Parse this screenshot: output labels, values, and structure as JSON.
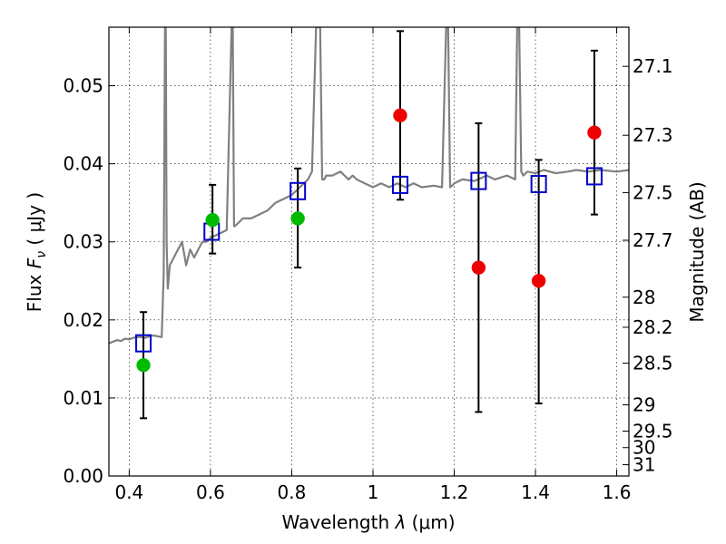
{
  "chart_data": {
    "type": "scatter",
    "xlabel_prefix": "Wavelength  ",
    "xlabel_symbol": "λ",
    "xlabel_unit": " (μm)",
    "ylabel_prefix": "Flux  ",
    "ylabel_symbol": "F",
    "ylabel_sub": "ν",
    "ylabel_unit": "  ( μJy )",
    "y2label": "Magnitude (AB)",
    "xlim": [
      0.35,
      1.63
    ],
    "ylim": [
      0.0,
      0.0575
    ],
    "grid": true,
    "x_ticks": [
      {
        "v": 0.4,
        "label": "0.4"
      },
      {
        "v": 0.6,
        "label": "0.6"
      },
      {
        "v": 0.8,
        "label": "0.8"
      },
      {
        "v": 1.0,
        "label": "1"
      },
      {
        "v": 1.2,
        "label": "1.2"
      },
      {
        "v": 1.4,
        "label": "1.4"
      },
      {
        "v": 1.6,
        "label": "1.6"
      }
    ],
    "y_ticks": [
      {
        "v": 0.0,
        "label": "0.00"
      },
      {
        "v": 0.01,
        "label": "0.01"
      },
      {
        "v": 0.02,
        "label": "0.02"
      },
      {
        "v": 0.03,
        "label": "0.03"
      },
      {
        "v": 0.04,
        "label": "0.04"
      },
      {
        "v": 0.05,
        "label": "0.05"
      }
    ],
    "y2_ticks": [
      {
        "mag": 27.1,
        "label": "27.1"
      },
      {
        "mag": 27.3,
        "label": "27.3"
      },
      {
        "mag": 27.5,
        "label": "27.5"
      },
      {
        "mag": 27.7,
        "label": "27.7"
      },
      {
        "mag": 28,
        "label": "28"
      },
      {
        "mag": 28.2,
        "label": "28.2"
      },
      {
        "mag": 28.5,
        "label": "28.5"
      },
      {
        "mag": 29,
        "label": "29"
      },
      {
        "mag": 29.5,
        "label": "29.5"
      },
      {
        "mag": 30,
        "label": "30"
      },
      {
        "mag": 31,
        "label": "31"
      }
    ],
    "series": [
      {
        "kind": "line",
        "color": "#808080",
        "x": [
          0.35,
          0.36,
          0.37,
          0.38,
          0.39,
          0.4,
          0.41,
          0.42,
          0.43,
          0.44,
          0.45,
          0.46,
          0.47,
          0.48,
          0.485,
          0.488,
          0.49,
          0.492,
          0.495,
          0.5,
          0.51,
          0.52,
          0.53,
          0.54,
          0.55,
          0.56,
          0.57,
          0.58,
          0.59,
          0.6,
          0.62,
          0.64,
          0.652,
          0.655,
          0.658,
          0.66,
          0.67,
          0.68,
          0.7,
          0.72,
          0.74,
          0.76,
          0.78,
          0.8,
          0.82,
          0.84,
          0.85,
          0.86,
          0.87,
          0.875,
          0.88,
          0.885,
          0.9,
          0.92,
          0.94,
          0.95,
          0.96,
          0.98,
          1.0,
          1.02,
          1.04,
          1.06,
          1.08,
          1.1,
          1.12,
          1.15,
          1.17,
          1.18,
          1.185,
          1.19,
          1.195,
          1.2,
          1.22,
          1.25,
          1.28,
          1.3,
          1.33,
          1.35,
          1.355,
          1.36,
          1.365,
          1.37,
          1.38,
          1.4,
          1.42,
          1.45,
          1.48,
          1.5,
          1.53,
          1.56,
          1.6,
          1.63
        ],
        "y": [
          0.017,
          0.0172,
          0.0174,
          0.0173,
          0.0176,
          0.0175,
          0.0177,
          0.0178,
          0.0178,
          0.0177,
          0.0179,
          0.018,
          0.0179,
          0.0178,
          0.026,
          0.0575,
          0.0575,
          0.03,
          0.024,
          0.027,
          0.028,
          0.029,
          0.03,
          0.027,
          0.029,
          0.028,
          0.029,
          0.03,
          0.03,
          0.0305,
          0.031,
          0.0315,
          0.0575,
          0.0575,
          0.032,
          0.032,
          0.0325,
          0.033,
          0.033,
          0.0335,
          0.034,
          0.035,
          0.0355,
          0.036,
          0.037,
          0.038,
          0.039,
          0.0575,
          0.0575,
          0.038,
          0.038,
          0.0385,
          0.0385,
          0.039,
          0.038,
          0.0385,
          0.038,
          0.0375,
          0.037,
          0.0375,
          0.037,
          0.0375,
          0.037,
          0.0375,
          0.037,
          0.0372,
          0.037,
          0.0575,
          0.0575,
          0.037,
          0.0372,
          0.0375,
          0.038,
          0.0378,
          0.0385,
          0.038,
          0.0385,
          0.038,
          0.0575,
          0.0575,
          0.039,
          0.0385,
          0.039,
          0.0388,
          0.0392,
          0.0388,
          0.039,
          0.0392,
          0.039,
          0.0392,
          0.039,
          0.0392
        ]
      },
      {
        "kind": "squares",
        "color": "#0000cc",
        "x": [
          0.435,
          0.603,
          0.815,
          1.067,
          1.26,
          1.408,
          1.545
        ],
        "y": [
          0.017,
          0.0313,
          0.0365,
          0.0373,
          0.0378,
          0.0374,
          0.0384
        ]
      },
      {
        "kind": "points",
        "color": "#00bb00",
        "x": [
          0.435,
          0.605,
          0.815
        ],
        "y": [
          0.0142,
          0.0328,
          0.033
        ],
        "yerr_low": [
          0.0068,
          0.0043,
          0.0063
        ],
        "yerr_high": [
          0.0068,
          0.0045,
          0.0064
        ]
      },
      {
        "kind": "points",
        "color": "#ee0000",
        "x": [
          1.067,
          1.26,
          1.408,
          1.545
        ],
        "y": [
          0.0462,
          0.0267,
          0.025,
          0.044
        ],
        "yerr_low": [
          0.0108,
          0.0185,
          0.0157,
          0.0105
        ],
        "yerr_high": [
          0.0108,
          0.0185,
          0.0155,
          0.0105
        ]
      }
    ]
  }
}
